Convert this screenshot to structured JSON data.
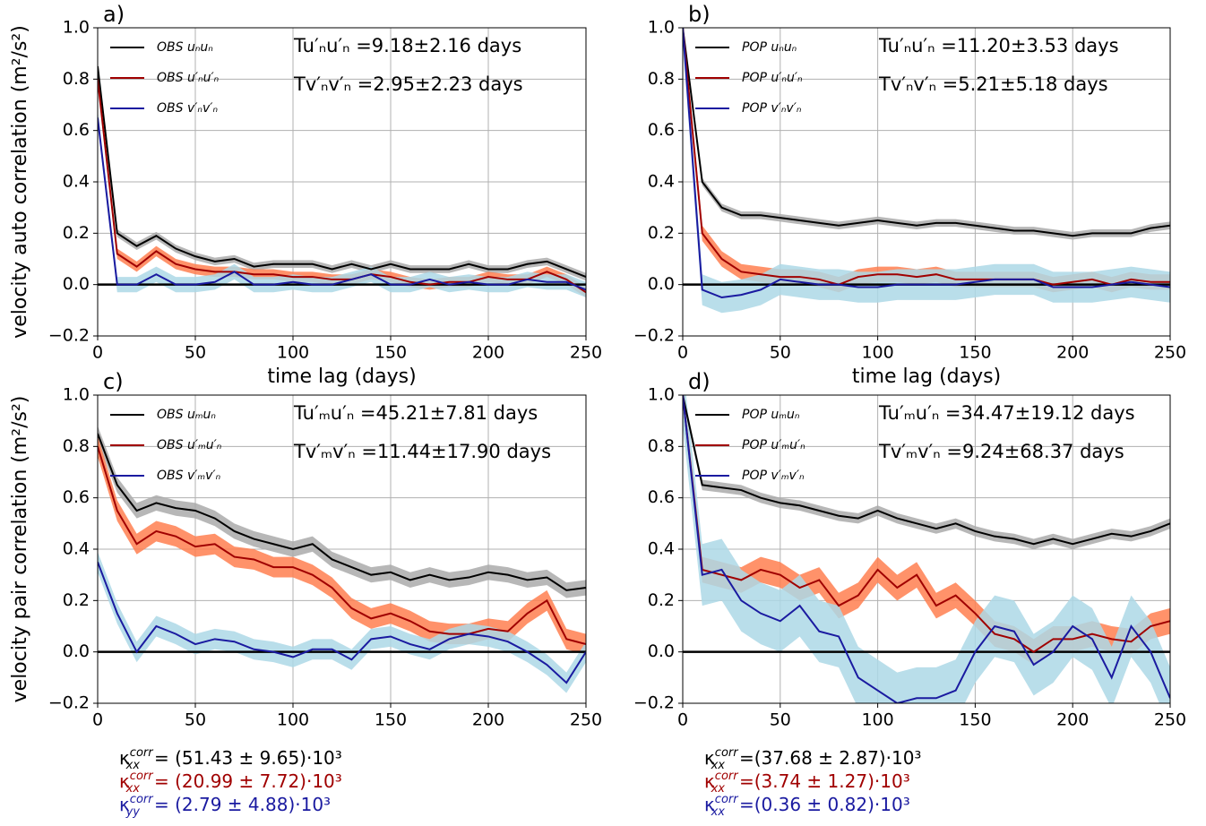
{
  "chart_data": [
    {
      "type": "line",
      "panel": "a)",
      "ylabel": "velocity auto correlation (m²/s²)",
      "xlabel": "time lag (days)",
      "x": [
        0,
        10,
        20,
        30,
        40,
        50,
        60,
        70,
        80,
        90,
        100,
        110,
        120,
        130,
        140,
        150,
        160,
        170,
        180,
        190,
        200,
        210,
        220,
        230,
        240,
        250
      ],
      "xlim": [
        0,
        250
      ],
      "xticks": [
        0,
        50,
        100,
        150,
        200,
        250
      ],
      "ylim": [
        -0.2,
        1.0
      ],
      "yticks": [
        {
          "value": -0.2,
          "label": "−0.2"
        },
        {
          "value": 0,
          "label": "0.0"
        },
        0.2,
        0.4,
        0.6,
        0.8,
        {
          "value": 1.0,
          "label": "1.0"
        }
      ],
      "grid": true,
      "hline": 0,
      "annotations": [
        "Tu′ₙu′ₙ =9.18±2.16 days",
        "Tv′ₙv′ₙ =2.95±2.23 days"
      ],
      "series": [
        {
          "name": "OBS uₙuₙ",
          "color": "#000000",
          "band_color": "#aaaaaa",
          "values": [
            0.85,
            0.2,
            0.15,
            0.19,
            0.14,
            0.11,
            0.09,
            0.1,
            0.07,
            0.08,
            0.08,
            0.08,
            0.06,
            0.08,
            0.06,
            0.08,
            0.06,
            0.06,
            0.06,
            0.08,
            0.06,
            0.06,
            0.08,
            0.09,
            0.06,
            0.03
          ],
          "band": [
            0.015,
            0.015,
            0.015,
            0.015,
            0.015,
            0.015,
            0.015,
            0.015,
            0.015,
            0.015,
            0.015,
            0.015,
            0.015,
            0.015,
            0.015,
            0.015,
            0.015,
            0.015,
            0.015,
            0.015,
            0.015,
            0.015,
            0.015,
            0.015,
            0.015,
            0.015
          ]
        },
        {
          "name": "OBS u′ₙu′ₙ",
          "color": "#a00000",
          "band_color": "#ff7f50",
          "values": [
            0.8,
            0.12,
            0.07,
            0.13,
            0.08,
            0.06,
            0.05,
            0.05,
            0.04,
            0.04,
            0.03,
            0.03,
            0.02,
            0.02,
            0.04,
            0.03,
            0.01,
            0.0,
            0.01,
            0.01,
            0.03,
            0.02,
            0.02,
            0.05,
            0.02,
            -0.03
          ],
          "band": [
            0.02,
            0.02,
            0.02,
            0.02,
            0.02,
            0.02,
            0.02,
            0.02,
            0.02,
            0.02,
            0.02,
            0.02,
            0.02,
            0.02,
            0.02,
            0.02,
            0.02,
            0.02,
            0.02,
            0.02,
            0.02,
            0.02,
            0.02,
            0.02,
            0.02,
            0.02
          ]
        },
        {
          "name": "OBS v′ₙv′ₙ",
          "color": "#1a1aa0",
          "band_color": "#add8e6",
          "values": [
            0.65,
            0.0,
            0.0,
            0.04,
            0.0,
            0.0,
            0.01,
            0.05,
            0.0,
            0.0,
            0.01,
            0.0,
            0.0,
            0.02,
            0.04,
            0.0,
            0.0,
            0.02,
            0.0,
            0.01,
            0.0,
            0.0,
            0.02,
            0.01,
            0.01,
            -0.02
          ],
          "band": [
            0.03,
            0.03,
            0.03,
            0.03,
            0.03,
            0.03,
            0.03,
            0.03,
            0.03,
            0.03,
            0.03,
            0.03,
            0.03,
            0.03,
            0.03,
            0.03,
            0.03,
            0.03,
            0.03,
            0.03,
            0.03,
            0.03,
            0.03,
            0.03,
            0.03,
            0.03
          ]
        }
      ]
    },
    {
      "type": "line",
      "panel": "b)",
      "xlabel": "time lag (days)",
      "x": [
        0,
        10,
        20,
        30,
        40,
        50,
        60,
        70,
        80,
        90,
        100,
        110,
        120,
        130,
        140,
        150,
        160,
        170,
        180,
        190,
        200,
        210,
        220,
        230,
        240,
        250
      ],
      "xlim": [
        0,
        250
      ],
      "xticks": [
        0,
        50,
        100,
        150,
        200,
        250
      ],
      "ylim": [
        -0.2,
        1.0
      ],
      "yticks": [
        {
          "value": -0.2,
          "label": "−0.2"
        },
        {
          "value": 0,
          "label": "0.0"
        },
        0.2,
        0.4,
        0.6,
        0.8,
        {
          "value": 1.0,
          "label": "1.0"
        }
      ],
      "grid": true,
      "hline": 0,
      "annotations": [
        "Tu′ₙu′ₙ =11.20±3.53 days",
        "Tv′ₙv′ₙ =5.21±5.18 days"
      ],
      "series": [
        {
          "name": "POP uₙuₙ",
          "color": "#000000",
          "band_color": "#aaaaaa",
          "values": [
            1.0,
            0.4,
            0.3,
            0.27,
            0.27,
            0.26,
            0.25,
            0.24,
            0.23,
            0.24,
            0.25,
            0.24,
            0.23,
            0.24,
            0.24,
            0.23,
            0.22,
            0.21,
            0.21,
            0.2,
            0.19,
            0.2,
            0.2,
            0.2,
            0.22,
            0.23
          ],
          "band": [
            0.015,
            0.015,
            0.015,
            0.015,
            0.015,
            0.015,
            0.015,
            0.015,
            0.015,
            0.015,
            0.015,
            0.015,
            0.015,
            0.015,
            0.015,
            0.015,
            0.015,
            0.015,
            0.015,
            0.015,
            0.015,
            0.015,
            0.015,
            0.015,
            0.015,
            0.015
          ]
        },
        {
          "name": "POP u′ₙu′ₙ",
          "color": "#a00000",
          "band_color": "#ff7f50",
          "values": [
            1.0,
            0.2,
            0.1,
            0.05,
            0.04,
            0.03,
            0.03,
            0.02,
            0.0,
            0.03,
            0.04,
            0.04,
            0.03,
            0.04,
            0.02,
            0.02,
            0.02,
            0.02,
            0.02,
            0.0,
            0.01,
            0.02,
            0.0,
            0.02,
            0.01,
            0.01
          ],
          "band": [
            0.03,
            0.03,
            0.03,
            0.03,
            0.03,
            0.03,
            0.03,
            0.03,
            0.03,
            0.03,
            0.03,
            0.03,
            0.03,
            0.03,
            0.03,
            0.03,
            0.03,
            0.03,
            0.03,
            0.03,
            0.03,
            0.03,
            0.03,
            0.03,
            0.03,
            0.03
          ]
        },
        {
          "name": "POP v′ₙv′ₙ",
          "color": "#1a1aa0",
          "band_color": "#add8e6",
          "values": [
            1.0,
            -0.02,
            -0.05,
            -0.04,
            -0.02,
            0.02,
            0.01,
            0.0,
            0.0,
            -0.01,
            -0.01,
            0.0,
            0.0,
            0.0,
            0.0,
            0.01,
            0.02,
            0.02,
            0.02,
            -0.01,
            -0.01,
            -0.01,
            0.0,
            0.01,
            0.0,
            -0.01
          ],
          "band": [
            0.06,
            0.06,
            0.06,
            0.06,
            0.06,
            0.06,
            0.06,
            0.06,
            0.06,
            0.06,
            0.06,
            0.06,
            0.06,
            0.06,
            0.06,
            0.06,
            0.06,
            0.06,
            0.06,
            0.06,
            0.06,
            0.06,
            0.06,
            0.06,
            0.06,
            0.06
          ]
        }
      ]
    },
    {
      "type": "line",
      "panel": "c)",
      "ylabel": "velocity pair correlation (m²/s²)",
      "x": [
        0,
        10,
        20,
        30,
        40,
        50,
        60,
        70,
        80,
        90,
        100,
        110,
        120,
        130,
        140,
        150,
        160,
        170,
        180,
        190,
        200,
        210,
        220,
        230,
        240,
        250
      ],
      "xlim": [
        0,
        250
      ],
      "xticks": [
        0,
        50,
        100,
        150,
        200,
        250
      ],
      "ylim": [
        -0.2,
        1.0
      ],
      "yticks": [
        {
          "value": -0.2,
          "label": "−0.2"
        },
        {
          "value": 0,
          "label": "0.0"
        },
        0.2,
        0.4,
        0.6,
        0.8,
        {
          "value": 1.0,
          "label": "1.0"
        }
      ],
      "grid": true,
      "hline": 0,
      "annotations": [
        "Tu′ₘu′ₙ =45.21±7.81 days",
        "Tv′ₘv′ₙ =11.44±17.90 days"
      ],
      "notes": [
        {
          "symbol": "κ",
          "sub": "xx",
          "sup": "corr",
          "text": "= (51.43 ± 9.65)·10³",
          "color": "#000000"
        },
        {
          "symbol": "κ",
          "sub": "xx",
          "sup": "corr",
          "text": "= (20.99 ± 7.72)·10³",
          "color": "#a00000"
        },
        {
          "symbol": "κ",
          "sub": "yy",
          "sup": "corr",
          "text": "= (2.79 ± 4.88)·10³",
          "color": "#1a1aa0"
        }
      ],
      "series": [
        {
          "name": "OBS uₘuₙ",
          "color": "#000000",
          "band_color": "#aaaaaa",
          "values": [
            0.85,
            0.65,
            0.55,
            0.58,
            0.56,
            0.55,
            0.52,
            0.47,
            0.44,
            0.42,
            0.4,
            0.42,
            0.36,
            0.33,
            0.3,
            0.31,
            0.28,
            0.3,
            0.28,
            0.29,
            0.31,
            0.3,
            0.28,
            0.29,
            0.24,
            0.25
          ],
          "band": [
            0.03,
            0.03,
            0.03,
            0.03,
            0.03,
            0.03,
            0.03,
            0.03,
            0.03,
            0.03,
            0.03,
            0.03,
            0.03,
            0.03,
            0.03,
            0.03,
            0.03,
            0.03,
            0.03,
            0.03,
            0.03,
            0.03,
            0.03,
            0.03,
            0.03,
            0.03
          ]
        },
        {
          "name": "OBS u′ₘu′ₙ",
          "color": "#a00000",
          "band_color": "#ff7f50",
          "values": [
            0.8,
            0.55,
            0.42,
            0.47,
            0.45,
            0.41,
            0.42,
            0.37,
            0.36,
            0.33,
            0.33,
            0.3,
            0.25,
            0.17,
            0.13,
            0.15,
            0.12,
            0.08,
            0.07,
            0.07,
            0.09,
            0.08,
            0.15,
            0.2,
            0.05,
            0.03
          ],
          "band": [
            0.04,
            0.04,
            0.04,
            0.04,
            0.04,
            0.04,
            0.04,
            0.04,
            0.04,
            0.04,
            0.04,
            0.04,
            0.04,
            0.04,
            0.04,
            0.04,
            0.04,
            0.04,
            0.04,
            0.04,
            0.04,
            0.04,
            0.04,
            0.04,
            0.04,
            0.04
          ]
        },
        {
          "name": "OBS v′ₘv′ₙ",
          "color": "#1a1aa0",
          "band_color": "#add8e6",
          "values": [
            0.35,
            0.15,
            0.0,
            0.1,
            0.07,
            0.03,
            0.05,
            0.04,
            0.01,
            0.0,
            -0.02,
            0.01,
            0.01,
            -0.03,
            0.05,
            0.06,
            0.03,
            0.01,
            0.05,
            0.07,
            0.06,
            0.04,
            0.0,
            -0.05,
            -0.12,
            0.0
          ],
          "band": [
            0.04,
            0.04,
            0.04,
            0.04,
            0.04,
            0.04,
            0.04,
            0.04,
            0.04,
            0.04,
            0.04,
            0.04,
            0.04,
            0.04,
            0.04,
            0.04,
            0.04,
            0.04,
            0.04,
            0.04,
            0.04,
            0.04,
            0.04,
            0.04,
            0.04,
            0.04
          ]
        }
      ]
    },
    {
      "type": "line",
      "panel": "d)",
      "x": [
        0,
        10,
        20,
        30,
        40,
        50,
        60,
        70,
        80,
        90,
        100,
        110,
        120,
        130,
        140,
        150,
        160,
        170,
        180,
        190,
        200,
        210,
        220,
        230,
        240,
        250
      ],
      "xlim": [
        0,
        250
      ],
      "xticks": [
        0,
        50,
        100,
        150,
        200,
        250
      ],
      "ylim": [
        -0.2,
        1.0
      ],
      "yticks": [
        {
          "value": -0.2,
          "label": "−0.2"
        },
        {
          "value": 0,
          "label": "0.0"
        },
        0.2,
        0.4,
        0.6,
        0.8,
        {
          "value": 1.0,
          "label": "1.0"
        }
      ],
      "grid": true,
      "hline": 0,
      "annotations": [
        "Tu′ₘu′ₙ =34.47±19.12 days",
        "Tv′ₘv′ₙ =9.24±68.37 days"
      ],
      "notes": [
        {
          "symbol": "κ",
          "sub": "xx",
          "sup": "corr",
          "text": "=(37.68 ± 2.87)·10³",
          "color": "#000000"
        },
        {
          "symbol": "κ",
          "sub": "xx",
          "sup": "corr",
          "text": "=(3.74 ± 1.27)·10³",
          "color": "#a00000"
        },
        {
          "symbol": "κ",
          "sub": "xx",
          "sup": "corr",
          "text": "=(0.36 ± 0.82)·10³",
          "color": "#1a1aa0"
        }
      ],
      "series": [
        {
          "name": "POP uₘuₙ",
          "color": "#000000",
          "band_color": "#aaaaaa",
          "values": [
            1.0,
            0.65,
            0.64,
            0.63,
            0.6,
            0.58,
            0.57,
            0.55,
            0.53,
            0.52,
            0.55,
            0.52,
            0.5,
            0.48,
            0.5,
            0.47,
            0.45,
            0.44,
            0.42,
            0.44,
            0.42,
            0.44,
            0.46,
            0.45,
            0.47,
            0.5
          ],
          "band": [
            0.02,
            0.02,
            0.02,
            0.02,
            0.02,
            0.02,
            0.02,
            0.02,
            0.02,
            0.02,
            0.02,
            0.02,
            0.02,
            0.02,
            0.02,
            0.02,
            0.02,
            0.02,
            0.02,
            0.02,
            0.02,
            0.02,
            0.02,
            0.02,
            0.02,
            0.02
          ]
        },
        {
          "name": "POP u′ₘu′ₙ",
          "color": "#a00000",
          "band_color": "#ff7f50",
          "values": [
            1.0,
            0.32,
            0.3,
            0.28,
            0.32,
            0.3,
            0.25,
            0.28,
            0.18,
            0.22,
            0.32,
            0.25,
            0.3,
            0.18,
            0.22,
            0.15,
            0.07,
            0.05,
            0.0,
            0.05,
            0.05,
            0.07,
            0.05,
            0.04,
            0.1,
            0.12
          ],
          "band": [
            0.05,
            0.05,
            0.05,
            0.05,
            0.05,
            0.05,
            0.05,
            0.05,
            0.05,
            0.05,
            0.05,
            0.05,
            0.05,
            0.05,
            0.05,
            0.05,
            0.05,
            0.05,
            0.05,
            0.05,
            0.05,
            0.05,
            0.05,
            0.05,
            0.05,
            0.05
          ]
        },
        {
          "name": "POP v′ₘv′ₙ",
          "color": "#1a1aa0",
          "band_color": "#add8e6",
          "values": [
            1.0,
            0.3,
            0.32,
            0.2,
            0.15,
            0.12,
            0.18,
            0.08,
            0.06,
            -0.1,
            -0.15,
            -0.2,
            -0.18,
            -0.18,
            -0.15,
            0.0,
            0.1,
            0.08,
            -0.05,
            0.0,
            0.1,
            0.05,
            -0.1,
            0.1,
            0.0,
            -0.18
          ],
          "band": [
            0.12,
            0.12,
            0.12,
            0.12,
            0.12,
            0.12,
            0.12,
            0.12,
            0.12,
            0.12,
            0.12,
            0.12,
            0.12,
            0.12,
            0.12,
            0.12,
            0.12,
            0.12,
            0.12,
            0.12,
            0.12,
            0.12,
            0.12,
            0.12,
            0.12,
            0.12
          ]
        }
      ]
    }
  ]
}
